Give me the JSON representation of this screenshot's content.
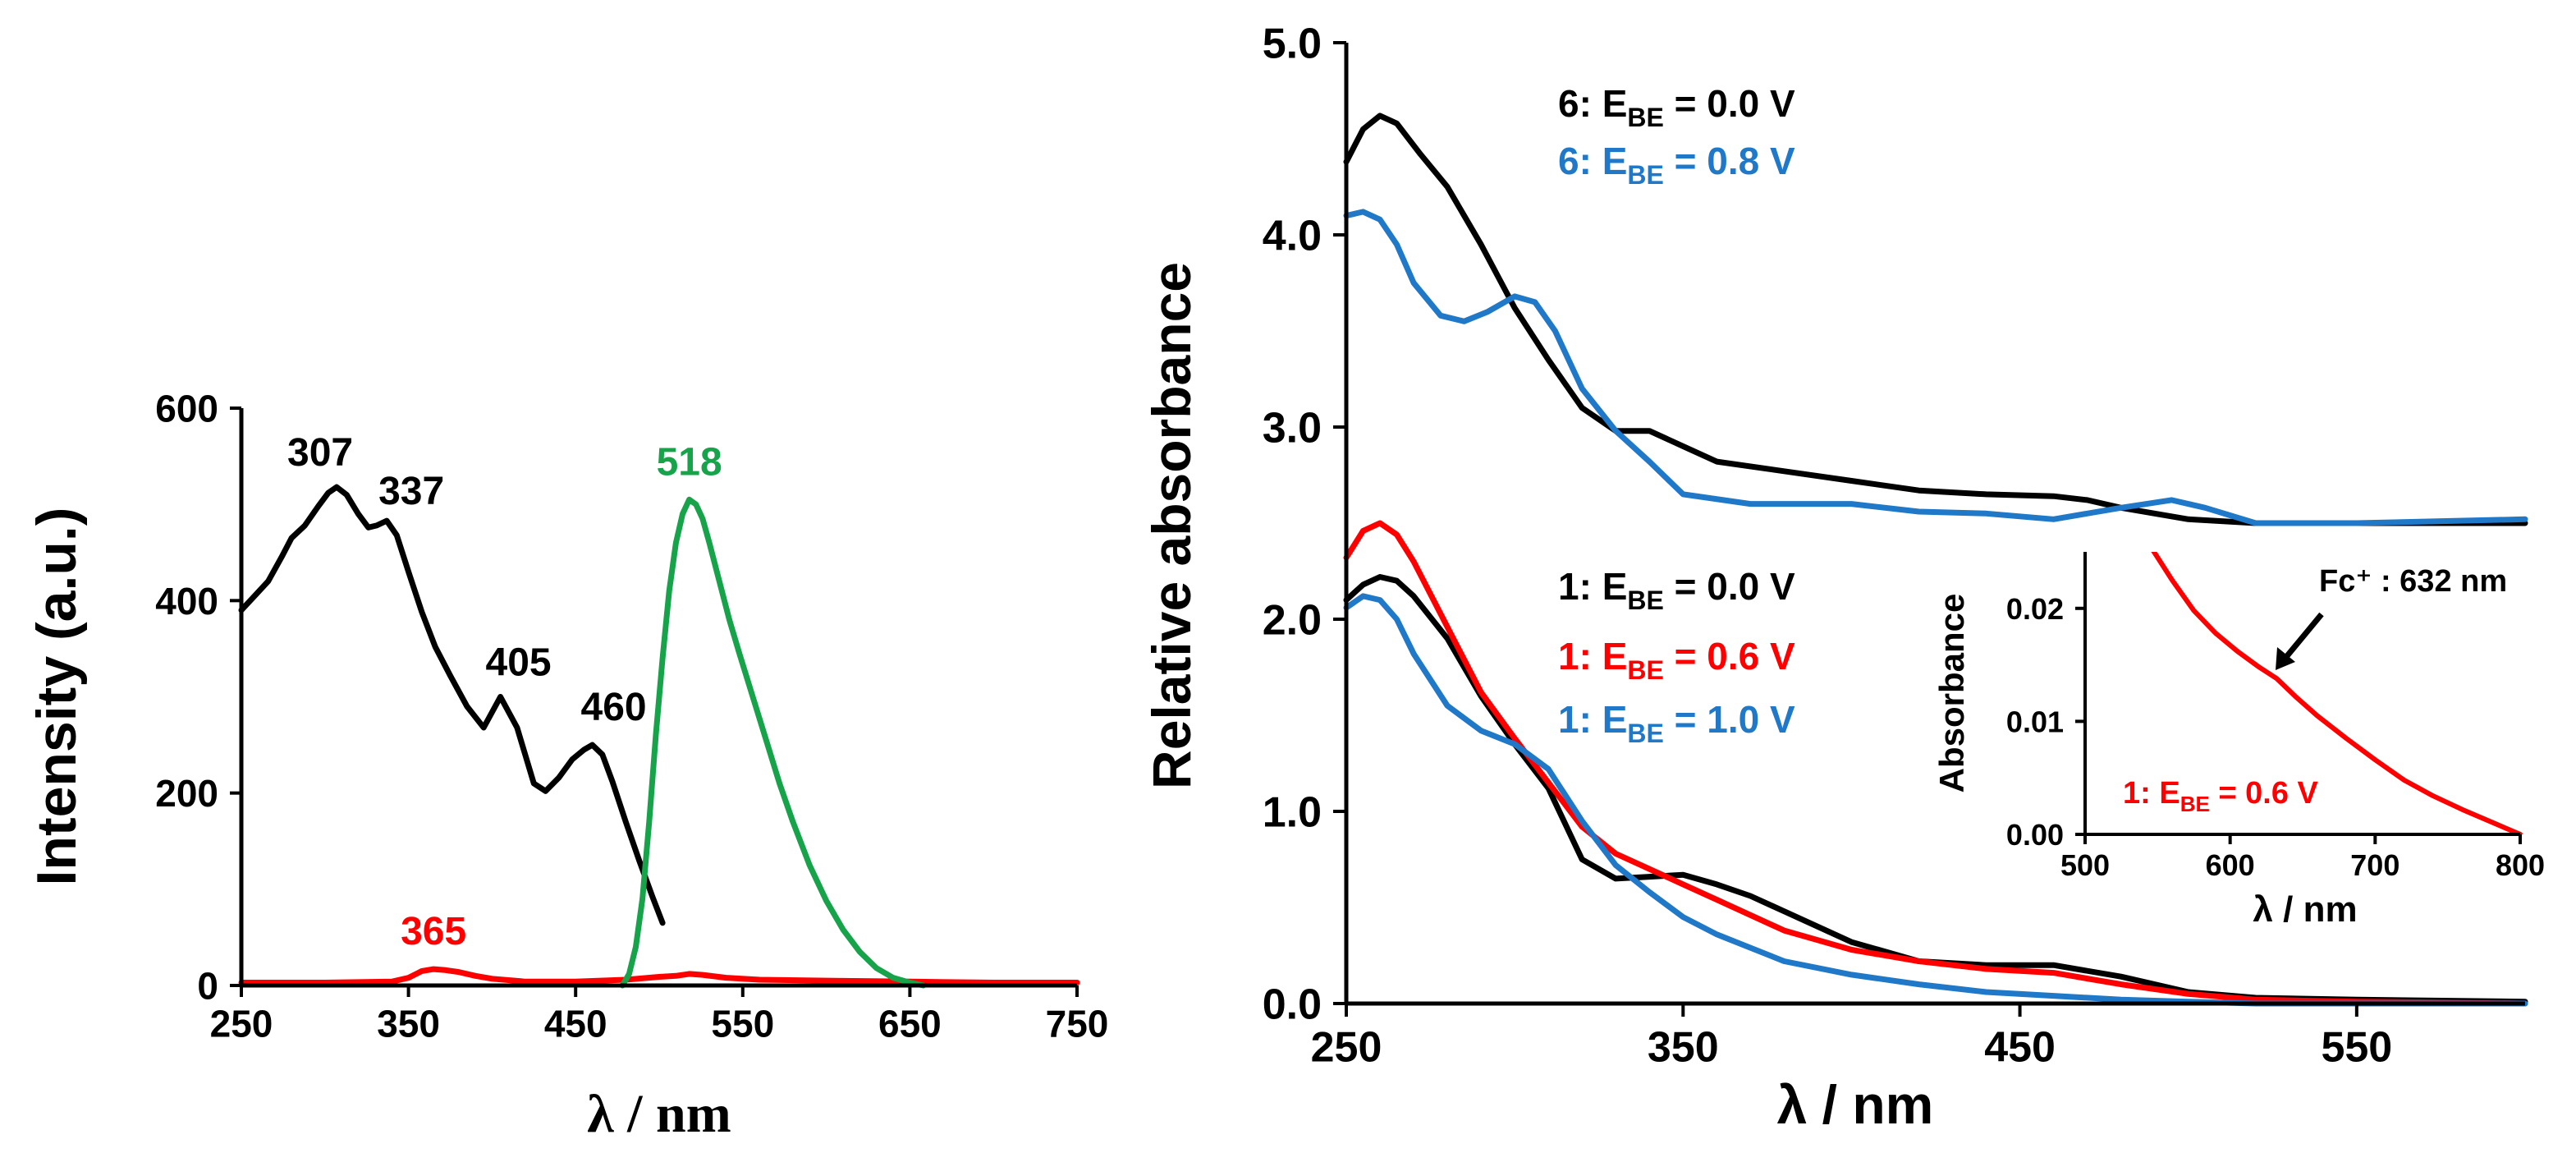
{
  "chart_data": [
    {
      "id": "left",
      "type": "line",
      "title": "",
      "xlabel": "λ / nm",
      "ylabel": "Intensity (a.u.)",
      "xlim": [
        250,
        750
      ],
      "ylim": [
        0,
        600
      ],
      "xticks": [
        250,
        350,
        450,
        550,
        650,
        750
      ],
      "yticks": [
        0,
        200,
        400,
        600
      ],
      "tick_labels_x": [
        "250",
        "350",
        "450",
        "550",
        "650",
        "750"
      ],
      "tick_labels_y": [
        "0",
        "200",
        "400",
        "600"
      ],
      "series": [
        {
          "name": "black",
          "color": "#000000",
          "x": [
            250,
            258,
            266,
            274,
            280,
            288,
            296,
            302,
            307,
            313,
            320,
            326,
            331,
            337,
            343,
            350,
            358,
            366,
            375,
            385,
            395,
            405,
            415,
            425,
            432,
            440,
            448,
            455,
            460,
            466,
            472,
            480,
            488,
            496,
            502
          ],
          "y": [
            390,
            405,
            420,
            445,
            465,
            478,
            498,
            512,
            518,
            510,
            490,
            476,
            478,
            483,
            468,
            430,
            388,
            352,
            322,
            290,
            268,
            300,
            268,
            210,
            202,
            216,
            235,
            245,
            250,
            240,
            212,
            170,
            130,
            92,
            65
          ]
        },
        {
          "name": "red",
          "color": "#ff0000",
          "x": [
            250,
            300,
            340,
            350,
            358,
            365,
            372,
            380,
            390,
            400,
            420,
            450,
            480,
            500,
            510,
            518,
            526,
            540,
            560,
            600,
            650,
            700,
            750
          ],
          "y": [
            3,
            3,
            4,
            8,
            15,
            17,
            16,
            14,
            10,
            7,
            4,
            4,
            6,
            9,
            10,
            12,
            11,
            8,
            6,
            5,
            4,
            3,
            3
          ]
        },
        {
          "name": "green",
          "color": "#17a34a",
          "x": [
            478,
            482,
            486,
            490,
            494,
            498,
            502,
            506,
            510,
            514,
            518,
            522,
            526,
            530,
            536,
            542,
            548,
            556,
            564,
            572,
            580,
            590,
            600,
            610,
            620,
            630,
            640,
            650,
            658
          ],
          "y": [
            0,
            12,
            40,
            90,
            170,
            260,
            340,
            410,
            460,
            490,
            505,
            500,
            485,
            460,
            420,
            380,
            345,
            300,
            255,
            210,
            170,
            125,
            88,
            58,
            35,
            18,
            8,
            3,
            0
          ]
        }
      ],
      "annotations": [
        {
          "text": "307",
          "x": 307,
          "y": 518,
          "color": "#000000"
        },
        {
          "text": "337",
          "x": 337,
          "y": 483,
          "color": "#000000"
        },
        {
          "text": "405",
          "x": 405,
          "y": 300,
          "color": "#000000"
        },
        {
          "text": "460",
          "x": 460,
          "y": 250,
          "color": "#000000"
        },
        {
          "text": "518",
          "x": 518,
          "y": 505,
          "color": "#17a34a"
        },
        {
          "text": "365",
          "x": 365,
          "y": 17,
          "color": "#ff0000"
        }
      ]
    },
    {
      "id": "right",
      "type": "line",
      "title": "",
      "xlabel": "λ / nm",
      "ylabel": "Relative absorbance",
      "xlim": [
        250,
        600
      ],
      "ylim": [
        0,
        5
      ],
      "xticks": [
        250,
        350,
        450,
        550
      ],
      "yticks": [
        0,
        1,
        2,
        3,
        4,
        5
      ],
      "tick_labels_x": [
        "250",
        "350",
        "450",
        "550"
      ],
      "tick_labels_y": [
        "0.0",
        "1.0",
        "2.0",
        "3.0",
        "4.0",
        "5.0"
      ],
      "series": [
        {
          "name": "6: E_BE = 0.0 V",
          "color": "#000000",
          "x": [
            250,
            255,
            260,
            265,
            272,
            280,
            290,
            300,
            310,
            320,
            330,
            340,
            350,
            360,
            380,
            400,
            420,
            440,
            460,
            470,
            480,
            500,
            520,
            550,
            600
          ],
          "y": [
            4.38,
            4.55,
            4.62,
            4.58,
            4.42,
            4.25,
            3.95,
            3.62,
            3.35,
            3.1,
            2.98,
            2.98,
            2.9,
            2.82,
            2.77,
            2.72,
            2.67,
            2.65,
            2.64,
            2.62,
            2.58,
            2.52,
            2.5,
            2.5,
            2.5
          ]
        },
        {
          "name": "6: E_BE = 0.8 V",
          "color": "#1f78c8",
          "x": [
            250,
            255,
            260,
            265,
            270,
            278,
            285,
            292,
            300,
            306,
            312,
            320,
            330,
            340,
            350,
            370,
            400,
            420,
            440,
            460,
            480,
            495,
            505,
            520,
            550,
            600
          ],
          "y": [
            4.1,
            4.12,
            4.08,
            3.95,
            3.75,
            3.58,
            3.55,
            3.6,
            3.68,
            3.65,
            3.5,
            3.2,
            2.98,
            2.82,
            2.65,
            2.6,
            2.6,
            2.56,
            2.55,
            2.52,
            2.58,
            2.62,
            2.58,
            2.5,
            2.5,
            2.52
          ]
        },
        {
          "name": "1: E_BE = 0.0 V",
          "color": "#000000",
          "x": [
            250,
            255,
            260,
            265,
            270,
            280,
            290,
            300,
            310,
            320,
            330,
            340,
            350,
            360,
            370,
            380,
            400,
            420,
            440,
            460,
            480,
            500,
            520,
            550,
            600
          ],
          "y": [
            2.1,
            2.18,
            2.22,
            2.2,
            2.12,
            1.9,
            1.6,
            1.35,
            1.12,
            0.75,
            0.65,
            0.66,
            0.67,
            0.62,
            0.56,
            0.48,
            0.32,
            0.22,
            0.2,
            0.2,
            0.14,
            0.06,
            0.03,
            0.02,
            0.01
          ]
        },
        {
          "name": "1: E_BE = 0.6 V",
          "color": "#ff0000",
          "x": [
            250,
            255,
            260,
            265,
            270,
            280,
            290,
            300,
            310,
            320,
            330,
            340,
            350,
            360,
            380,
            400,
            420,
            440,
            460,
            480,
            500,
            520,
            550,
            600
          ],
          "y": [
            2.32,
            2.46,
            2.5,
            2.44,
            2.3,
            1.96,
            1.62,
            1.38,
            1.15,
            0.92,
            0.78,
            0.7,
            0.62,
            0.54,
            0.38,
            0.28,
            0.22,
            0.18,
            0.16,
            0.1,
            0.05,
            0.02,
            0.01,
            0.0
          ]
        },
        {
          "name": "1: E_BE = 1.0 V",
          "color": "#1f78c8",
          "x": [
            250,
            255,
            260,
            265,
            270,
            280,
            290,
            300,
            310,
            320,
            330,
            340,
            350,
            360,
            380,
            400,
            420,
            440,
            460,
            480,
            500,
            520,
            550,
            600
          ],
          "y": [
            2.06,
            2.12,
            2.1,
            2.0,
            1.82,
            1.55,
            1.42,
            1.35,
            1.22,
            0.95,
            0.72,
            0.58,
            0.45,
            0.36,
            0.22,
            0.15,
            0.1,
            0.06,
            0.04,
            0.02,
            0.01,
            0.0,
            0.0,
            0.0
          ]
        }
      ],
      "legend_top": [
        {
          "num": "6",
          "sub": "BE",
          "value": "= 0.0 V",
          "color": "#000000"
        },
        {
          "num": "6",
          "sub": "BE",
          "value": "= 0.8 V",
          "color": "#1f78c8"
        }
      ],
      "legend_bottom": [
        {
          "num": "1",
          "sub": "BE",
          "value": "= 0.0 V",
          "color": "#000000"
        },
        {
          "num": "1",
          "sub": "BE",
          "value": "= 0.6 V",
          "color": "#ff0000"
        },
        {
          "num": "1",
          "sub": "BE",
          "value": "= 1.0 V",
          "color": "#1f78c8"
        }
      ]
    },
    {
      "id": "inset",
      "type": "line",
      "title": "",
      "xlabel": "λ / nm",
      "ylabel": "Absorbance",
      "xlim": [
        500,
        800
      ],
      "ylim": [
        0,
        0.025
      ],
      "xticks": [
        500,
        600,
        700,
        800
      ],
      "yticks": [
        0,
        0.01,
        0.02
      ],
      "tick_labels_x": [
        "500",
        "600",
        "700",
        "800"
      ],
      "tick_labels_y": [
        "0.00",
        "0.01",
        "0.02"
      ],
      "series": [
        {
          "name": "1: E_BE = 0.6 V",
          "color": "#ff0000",
          "x": [
            545,
            560,
            575,
            590,
            605,
            620,
            632,
            645,
            660,
            680,
            700,
            720,
            740,
            760,
            780,
            800
          ],
          "y": [
            0.0255,
            0.0225,
            0.0198,
            0.0178,
            0.0162,
            0.0148,
            0.0138,
            0.0122,
            0.0105,
            0.0085,
            0.0066,
            0.0048,
            0.0034,
            0.0022,
            0.0011,
            0.0
          ]
        }
      ],
      "annotation": {
        "text": "Fc⁺ : 632 nm",
        "x": 632,
        "y": 0.0138,
        "color": "#000000"
      },
      "label": {
        "num": "1",
        "sub": "BE",
        "value": "= 0.6 V",
        "color": "#ff0000"
      }
    }
  ]
}
